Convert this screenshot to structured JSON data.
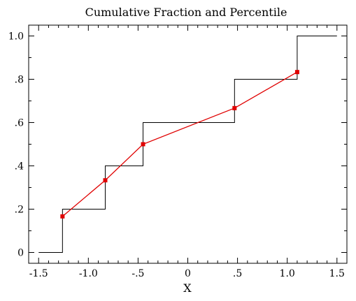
{
  "chart_data": {
    "type": "line",
    "title": "Cumulative Fraction and Percentile",
    "xlabel": "X",
    "ylabel": "",
    "xlim": [
      -1.6,
      1.6
    ],
    "ylim": [
      -0.05,
      1.05
    ],
    "x_ticks": [
      {
        "value": -1.5,
        "label": "-1.5"
      },
      {
        "value": -1.0,
        "label": "-1.0"
      },
      {
        "value": -0.5,
        "label": "-.5"
      },
      {
        "value": 0.0,
        "label": "0"
      },
      {
        "value": 0.5,
        "label": ".5"
      },
      {
        "value": 1.0,
        "label": "1.0"
      },
      {
        "value": 1.5,
        "label": "1.5"
      }
    ],
    "y_ticks": [
      {
        "value": 0.0,
        "label": "0"
      },
      {
        "value": 0.2,
        "label": ".2"
      },
      {
        "value": 0.4,
        "label": ".4"
      },
      {
        "value": 0.6,
        "label": ".6"
      },
      {
        "value": 0.8,
        "label": ".8"
      },
      {
        "value": 1.0,
        "label": "1.0"
      }
    ],
    "x_minor_step": 0.1,
    "y_minor_step": 0.1,
    "grid": false,
    "series": [
      {
        "kind": "step",
        "color": "#000000",
        "x": [
          -1.5,
          -1.26,
          -1.26,
          -0.83,
          -0.83,
          -0.45,
          -0.45,
          0.47,
          0.47,
          1.1,
          1.1,
          1.5
        ],
        "y": [
          0.0,
          0.0,
          0.2,
          0.2,
          0.4,
          0.4,
          0.6,
          0.6,
          0.8,
          0.8,
          1.0,
          1.0
        ]
      },
      {
        "kind": "line-markers",
        "color": "#e00000",
        "x": [
          -1.26,
          -0.83,
          -0.45,
          0.47,
          1.1
        ],
        "y": [
          0.1667,
          0.3333,
          0.5,
          0.6667,
          0.8333
        ]
      }
    ]
  }
}
